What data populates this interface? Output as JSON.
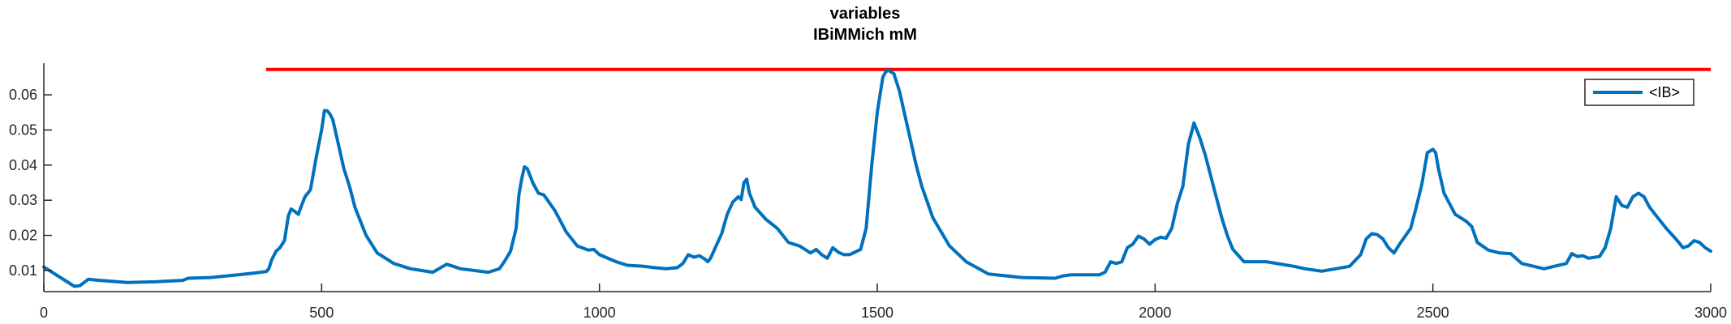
{
  "colors": {
    "series": "#0072BD",
    "threshold": "#FF0000",
    "axis": "#262626",
    "background": "#FFFFFF"
  },
  "chart_data": {
    "type": "line",
    "title": [
      "variables",
      "IBiMMich mM"
    ],
    "xlabel": "",
    "ylabel": "",
    "xlim": [
      0,
      3000
    ],
    "ylim": [
      0.004,
      0.069
    ],
    "xticks": [
      0,
      500,
      1000,
      1500,
      2000,
      2500,
      3000
    ],
    "yticks": [
      0.01,
      0.02,
      0.03,
      0.04,
      0.05,
      0.06
    ],
    "ytick_labels": [
      "0.01",
      "0.02",
      "0.03",
      "0.04",
      "0.05",
      "0.06"
    ],
    "grid": false,
    "legend": {
      "placement": "top-right",
      "entries": [
        "<IB>"
      ]
    },
    "series": [
      {
        "name": "<IB>",
        "x": [
          0,
          20,
          40,
          55,
          65,
          80,
          100,
          150,
          200,
          250,
          260,
          300,
          350,
          380,
          400,
          405,
          410,
          418,
          425,
          433,
          440,
          445,
          450,
          458,
          465,
          470,
          480,
          490,
          500,
          505,
          510,
          515,
          520,
          530,
          540,
          550,
          560,
          580,
          600,
          630,
          660,
          700,
          725,
          750,
          800,
          820,
          830,
          840,
          850,
          855,
          860,
          865,
          870,
          880,
          890,
          900,
          920,
          940,
          960,
          980,
          990,
          1000,
          1030,
          1050,
          1080,
          1100,
          1120,
          1140,
          1150,
          1160,
          1170,
          1180,
          1190,
          1195,
          1200,
          1210,
          1220,
          1230,
          1240,
          1250,
          1255,
          1260,
          1265,
          1270,
          1280,
          1300,
          1320,
          1340,
          1360,
          1380,
          1390,
          1400,
          1410,
          1420,
          1430,
          1440,
          1450,
          1470,
          1480,
          1490,
          1500,
          1510,
          1515,
          1520,
          1530,
          1540,
          1550,
          1560,
          1570,
          1580,
          1600,
          1630,
          1660,
          1700,
          1760,
          1820,
          1835,
          1850,
          1900,
          1910,
          1920,
          1930,
          1940,
          1950,
          1960,
          1970,
          1980,
          1990,
          2000,
          2010,
          2020,
          2030,
          2040,
          2050,
          2060,
          2070,
          2080,
          2090,
          2100,
          2110,
          2120,
          2130,
          2140,
          2160,
          2200,
          2250,
          2270,
          2300,
          2350,
          2370,
          2380,
          2390,
          2400,
          2410,
          2420,
          2430,
          2440,
          2460,
          2470,
          2480,
          2490,
          2500,
          2505,
          2510,
          2520,
          2540,
          2560,
          2570,
          2580,
          2600,
          2620,
          2640,
          2660,
          2700,
          2740,
          2750,
          2760,
          2770,
          2780,
          2800,
          2810,
          2820,
          2830,
          2840,
          2850,
          2860,
          2870,
          2880,
          2890,
          2900,
          2920,
          2940,
          2950,
          2960,
          2970,
          2980,
          2990,
          3000
        ],
        "y": [
          0.011,
          0.009,
          0.007,
          0.0055,
          0.0057,
          0.0075,
          0.0072,
          0.0066,
          0.0068,
          0.0072,
          0.0078,
          0.008,
          0.0088,
          0.0093,
          0.0097,
          0.0105,
          0.013,
          0.0155,
          0.0165,
          0.0185,
          0.0255,
          0.0275,
          0.027,
          0.026,
          0.029,
          0.031,
          0.033,
          0.042,
          0.05,
          0.0555,
          0.0555,
          0.0545,
          0.053,
          0.046,
          0.039,
          0.034,
          0.028,
          0.02,
          0.015,
          0.012,
          0.0105,
          0.0095,
          0.0118,
          0.0105,
          0.0095,
          0.0105,
          0.0128,
          0.0155,
          0.022,
          0.0315,
          0.036,
          0.0395,
          0.039,
          0.035,
          0.032,
          0.0315,
          0.027,
          0.021,
          0.017,
          0.0158,
          0.016,
          0.0145,
          0.0125,
          0.0115,
          0.0112,
          0.0108,
          0.0105,
          0.0108,
          0.012,
          0.0145,
          0.0138,
          0.0142,
          0.0132,
          0.0125,
          0.0135,
          0.017,
          0.0205,
          0.026,
          0.0295,
          0.031,
          0.0302,
          0.035,
          0.036,
          0.032,
          0.028,
          0.0245,
          0.022,
          0.018,
          0.017,
          0.015,
          0.016,
          0.0145,
          0.0135,
          0.0165,
          0.0152,
          0.0145,
          0.0145,
          0.016,
          0.022,
          0.04,
          0.055,
          0.065,
          0.0665,
          0.067,
          0.066,
          0.061,
          0.054,
          0.047,
          0.04,
          0.034,
          0.025,
          0.017,
          0.0125,
          0.009,
          0.008,
          0.0078,
          0.0085,
          0.0088,
          0.0088,
          0.0095,
          0.0125,
          0.012,
          0.0125,
          0.0165,
          0.0175,
          0.0198,
          0.019,
          0.0175,
          0.0188,
          0.0195,
          0.0192,
          0.022,
          0.029,
          0.034,
          0.046,
          0.052,
          0.048,
          0.043,
          0.037,
          0.031,
          0.025,
          0.02,
          0.016,
          0.0125,
          0.0125,
          0.0112,
          0.0105,
          0.0098,
          0.0112,
          0.0145,
          0.019,
          0.0205,
          0.0202,
          0.019,
          0.0165,
          0.015,
          0.0175,
          0.022,
          0.028,
          0.0345,
          0.0435,
          0.0445,
          0.0435,
          0.039,
          0.032,
          0.026,
          0.024,
          0.0225,
          0.018,
          0.0158,
          0.015,
          0.0148,
          0.012,
          0.0105,
          0.012,
          0.0148,
          0.014,
          0.0142,
          0.0135,
          0.014,
          0.0165,
          0.022,
          0.031,
          0.0285,
          0.028,
          0.031,
          0.032,
          0.031,
          0.028,
          0.026,
          0.022,
          0.0185,
          0.0165,
          0.017,
          0.0185,
          0.018,
          0.0165,
          0.0155
        ]
      },
      {
        "name": "",
        "x": [
          400,
          3000
        ],
        "y": [
          0.0672,
          0.0672
        ]
      }
    ]
  }
}
